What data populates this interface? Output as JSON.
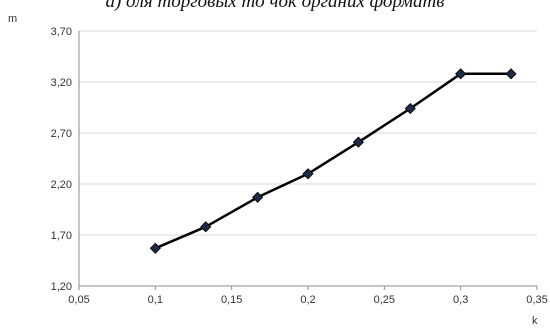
{
  "chart_data": {
    "type": "line",
    "title": "а) для торговых то чок органих форматв",
    "ylabel": "m",
    "xlabel": "k",
    "xlim": [
      0.05,
      0.35
    ],
    "ylim": [
      1.2,
      3.7
    ],
    "x_ticks": [
      "0,05",
      "0,1",
      "0,15",
      "0,2",
      "0,25",
      "0,3",
      "0,35"
    ],
    "x_tick_values": [
      0.05,
      0.1,
      0.15,
      0.2,
      0.25,
      0.3,
      0.35
    ],
    "y_ticks": [
      "1,20",
      "1,70",
      "2,20",
      "2,70",
      "3,20",
      "3,70"
    ],
    "y_tick_values": [
      1.2,
      1.7,
      2.2,
      2.7,
      3.2,
      3.7
    ],
    "grid": true,
    "legend": "none",
    "series": [
      {
        "color": "#000000",
        "marker": "diamond",
        "x": [
          0.1,
          0.133,
          0.167,
          0.2,
          0.233,
          0.267,
          0.3,
          0.333
        ],
        "y": [
          1.57,
          1.78,
          2.07,
          2.3,
          2.61,
          2.94,
          3.28,
          3.28
        ]
      }
    ],
    "colors": {
      "grid": "#d9d9d9",
      "axis": "#8c8c8c",
      "line": "#000000",
      "marker_fill": "#1f2a44"
    }
  }
}
